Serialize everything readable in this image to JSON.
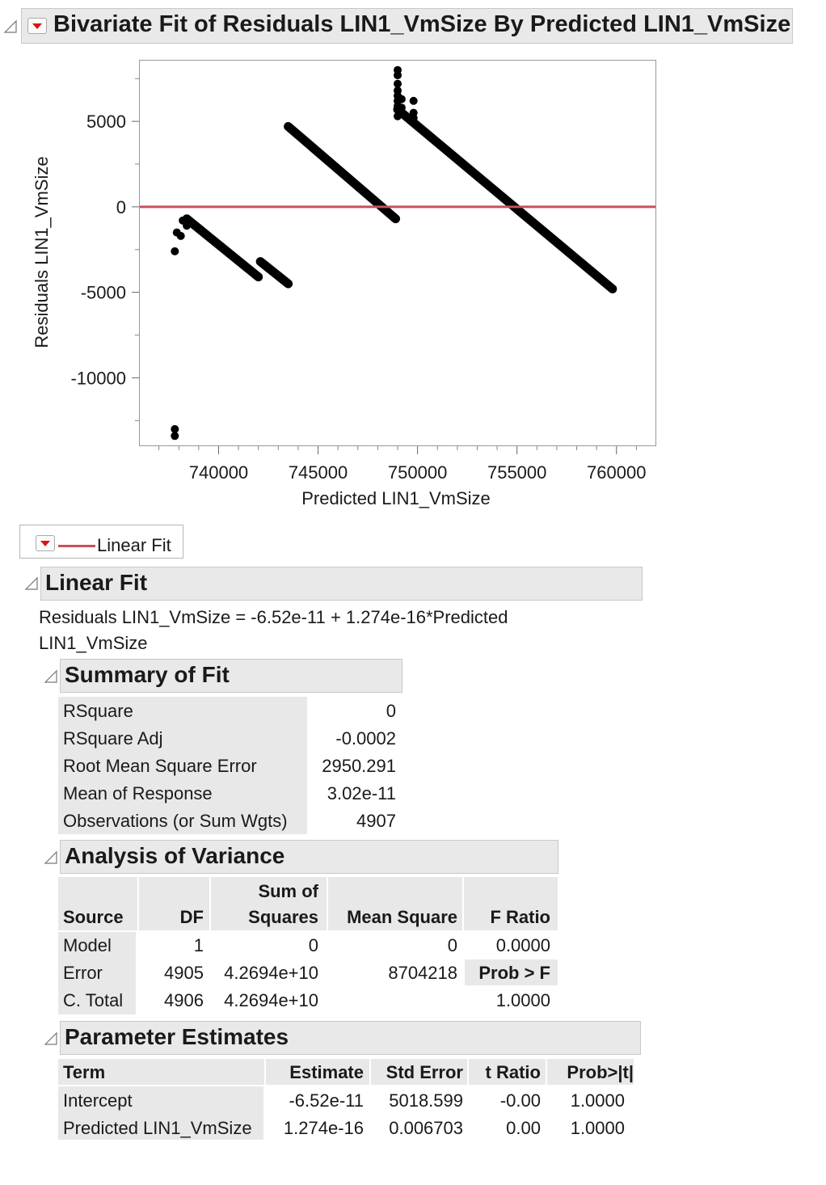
{
  "report": {
    "title": "Bivariate Fit of Residuals LIN1_VmSize By Predicted LIN1_VmSize"
  },
  "chart_data": {
    "type": "scatter",
    "xlabel": "Predicted LIN1_VmSize",
    "ylabel": "Residuals LIN1_VmSize",
    "xlim": [
      736000,
      762000
    ],
    "ylim": [
      -14000,
      8600
    ],
    "xticks": [
      "740000",
      "745000",
      "750000",
      "755000",
      "760000"
    ],
    "yticks": [
      "5000",
      "0",
      "-5000",
      "-10000"
    ],
    "reference_line": {
      "y": 0,
      "color": "#c8505a"
    },
    "segments": [
      {
        "x1": 738400,
        "y1": -700,
        "x2": 742000,
        "y2": -4100
      },
      {
        "x1": 742100,
        "y1": -3200,
        "x2": 743500,
        "y2": -4500
      },
      {
        "x1": 743500,
        "y1": 4700,
        "x2": 748900,
        "y2": -700
      },
      {
        "x1": 749000,
        "y1": 5700,
        "x2": 759800,
        "y2": -4800
      }
    ],
    "points": [
      {
        "x": 737800,
        "y": -13000
      },
      {
        "x": 737800,
        "y": -13400
      },
      {
        "x": 737800,
        "y": -2600
      },
      {
        "x": 737900,
        "y": -1500
      },
      {
        "x": 738100,
        "y": -1700
      },
      {
        "x": 738200,
        "y": -800
      },
      {
        "x": 738400,
        "y": -1100
      },
      {
        "x": 738500,
        "y": -900
      },
      {
        "x": 749000,
        "y": 8000
      },
      {
        "x": 749000,
        "y": 7700
      },
      {
        "x": 749000,
        "y": 7200
      },
      {
        "x": 749000,
        "y": 6800
      },
      {
        "x": 749000,
        "y": 6500
      },
      {
        "x": 749000,
        "y": 6200
      },
      {
        "x": 749000,
        "y": 5900
      },
      {
        "x": 749000,
        "y": 5300
      },
      {
        "x": 749200,
        "y": 6300
      },
      {
        "x": 749200,
        "y": 5800
      },
      {
        "x": 749800,
        "y": 6200
      },
      {
        "x": 749800,
        "y": 5500
      },
      {
        "x": 749800,
        "y": 5200
      }
    ],
    "line_color": "#c8505a",
    "point_color": "#000000"
  },
  "legend": {
    "label": "Linear Fit"
  },
  "linear_fit": {
    "title": "Linear Fit",
    "equation_line1": "Residuals LIN1_VmSize = -6.52e-11 + 1.274e-16*Predicted",
    "equation_line2": "LIN1_VmSize"
  },
  "summary_of_fit": {
    "title": "Summary of Fit",
    "rows": [
      {
        "label": "RSquare",
        "value": "0"
      },
      {
        "label": "RSquare Adj",
        "value": "-0.0002"
      },
      {
        "label": "Root Mean Square Error",
        "value": "2950.291"
      },
      {
        "label": "Mean of Response",
        "value": "3.02e-11"
      },
      {
        "label": "Observations (or Sum Wgts)",
        "value": "4907"
      }
    ]
  },
  "anova": {
    "title": "Analysis of Variance",
    "headers": {
      "source": "Source",
      "df": "DF",
      "ss1": "Sum of",
      "ss2": "Squares",
      "ms": "Mean Square",
      "f": "F Ratio"
    },
    "rows": [
      {
        "source": "Model",
        "df": "1",
        "ss": "0",
        "ms": "0",
        "f": "0.0000"
      },
      {
        "source": "Error",
        "df": "4905",
        "ss": "4.2694e+10",
        "ms": "8704218",
        "f": "Prob > F"
      },
      {
        "source": "C. Total",
        "df": "4906",
        "ss": "4.2694e+10",
        "ms": "",
        "f": "1.0000"
      }
    ]
  },
  "parameter_estimates": {
    "title": "Parameter Estimates",
    "headers": {
      "term": "Term",
      "estimate": "Estimate",
      "std": "Std Error",
      "t": "t Ratio",
      "p": "Prob>|t|"
    },
    "rows": [
      {
        "term": "Intercept",
        "estimate": "-6.52e-11",
        "std": "5018.599",
        "t": "-0.00",
        "p": "1.0000"
      },
      {
        "term": "Predicted LIN1_VmSize",
        "estimate": "1.274e-16",
        "std": "0.006703",
        "t": "0.00",
        "p": "1.0000"
      }
    ]
  }
}
